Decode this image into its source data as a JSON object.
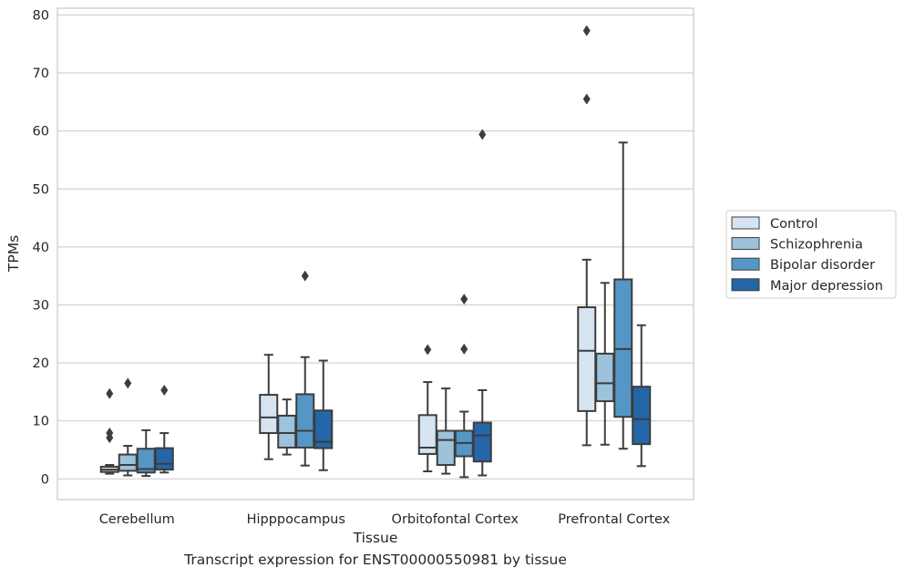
{
  "chart_data": {
    "type": "boxplot",
    "xlabel": "Tissue",
    "ylabel": "TPMs",
    "caption": "Transcript expression for ENST00000550981 by tissue",
    "ylim": [
      -3.5,
      81.5
    ],
    "yticks": [
      0,
      10,
      20,
      30,
      40,
      50,
      60,
      70,
      80
    ],
    "grid": "horizontal",
    "legend_position": "right, outside plot",
    "categories": [
      "Cerebellum",
      "Hipppocampus",
      "Orbitofontal Cortex",
      "Prefrontal Cortex"
    ],
    "series": [
      {
        "name": "Control",
        "color": "#d6e3f0",
        "boxes": [
          {
            "whislo": 0.9,
            "q1": 1.2,
            "med": 1.6,
            "q3": 2.1,
            "whishi": 2.4,
            "fliers": [
              14.7,
              7.9,
              7.1
            ]
          },
          {
            "whislo": 3.4,
            "q1": 7.9,
            "med": 10.6,
            "q3": 14.5,
            "whishi": 21.4,
            "fliers": []
          },
          {
            "whislo": 1.3,
            "q1": 4.3,
            "med": 5.4,
            "q3": 11.0,
            "whishi": 16.7,
            "fliers": [
              22.3
            ]
          },
          {
            "whislo": 5.8,
            "q1": 11.7,
            "med": 22.1,
            "q3": 29.6,
            "whishi": 37.8,
            "fliers": [
              77.3,
              65.5
            ]
          }
        ]
      },
      {
        "name": "Schizophrenia",
        "color": "#9cc2dc",
        "boxes": [
          {
            "whislo": 0.6,
            "q1": 1.4,
            "med": 2.4,
            "q3": 4.2,
            "whishi": 5.7,
            "fliers": [
              16.5
            ]
          },
          {
            "whislo": 4.2,
            "q1": 5.4,
            "med": 7.9,
            "q3": 10.9,
            "whishi": 13.7,
            "fliers": []
          },
          {
            "whislo": 0.9,
            "q1": 2.4,
            "med": 6.7,
            "q3": 8.3,
            "whishi": 15.6,
            "fliers": []
          },
          {
            "whislo": 5.9,
            "q1": 13.4,
            "med": 16.5,
            "q3": 21.6,
            "whishi": 33.8,
            "fliers": []
          }
        ]
      },
      {
        "name": "Bipolar disorder",
        "color": "#5596c6",
        "boxes": [
          {
            "whislo": 0.5,
            "q1": 1.1,
            "med": 1.7,
            "q3": 5.2,
            "whishi": 8.4,
            "fliers": []
          },
          {
            "whislo": 2.3,
            "q1": 5.4,
            "med": 8.3,
            "q3": 14.6,
            "whishi": 21.0,
            "fliers": [
              35.0
            ]
          },
          {
            "whislo": 0.3,
            "q1": 3.9,
            "med": 6.2,
            "q3": 8.3,
            "whishi": 11.6,
            "fliers": [
              31.0,
              22.4
            ]
          },
          {
            "whislo": 5.2,
            "q1": 10.7,
            "med": 22.4,
            "q3": 34.4,
            "whishi": 58.0,
            "fliers": []
          }
        ]
      },
      {
        "name": "Major depression",
        "color": "#2466a7",
        "boxes": [
          {
            "whislo": 1.1,
            "q1": 1.6,
            "med": 2.6,
            "q3": 5.3,
            "whishi": 7.9,
            "fliers": [
              15.3
            ]
          },
          {
            "whislo": 1.5,
            "q1": 5.3,
            "med": 6.4,
            "q3": 11.8,
            "whishi": 20.4,
            "fliers": []
          },
          {
            "whislo": 0.6,
            "q1": 3.0,
            "med": 7.5,
            "q3": 9.7,
            "whishi": 15.3,
            "fliers": [
              59.4
            ]
          },
          {
            "whislo": 2.2,
            "q1": 6.0,
            "med": 10.3,
            "q3": 15.9,
            "whishi": 26.5,
            "fliers": []
          }
        ]
      }
    ]
  }
}
